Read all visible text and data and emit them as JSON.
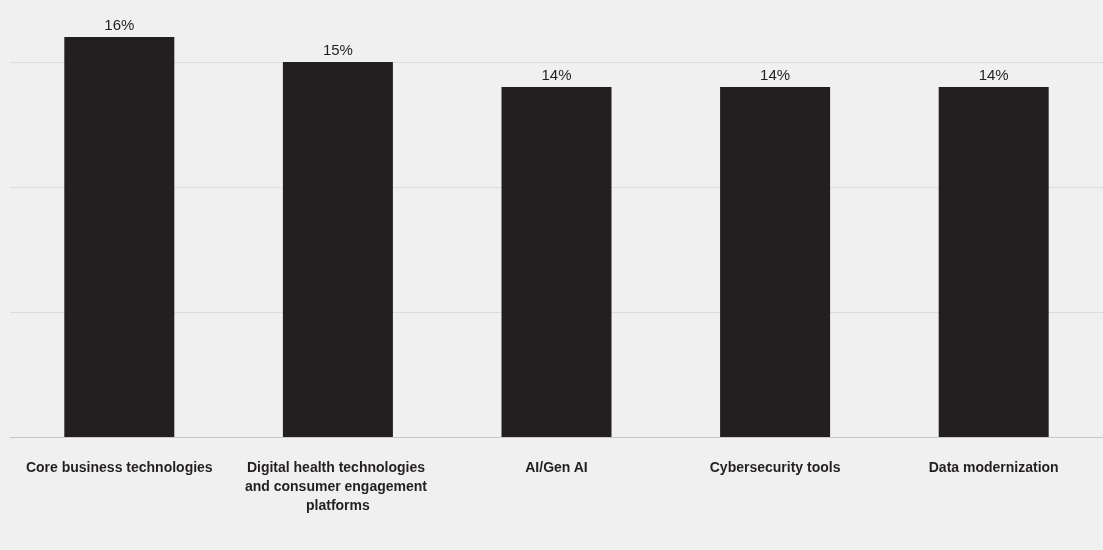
{
  "chart_data": {
    "type": "bar",
    "categories": [
      "Core business technologies",
      "Digital health technologies and consumer engagement platforms",
      "AI/Gen AI",
      "Cybersecurity tools",
      "Data modernization"
    ],
    "values": [
      16,
      15,
      14,
      14,
      14
    ],
    "color": "#231f20",
    "value_labels": [
      "16%",
      "15%",
      "14%",
      "14%",
      "14%"
    ],
    "yticks": [
      {
        "value": 0,
        "label": null
      },
      {
        "value": 5,
        "label": null
      },
      {
        "value": 10,
        "label": null
      },
      {
        "value": 15,
        "label": null
      }
    ],
    "grid": "y",
    "tick_labels": "x"
  }
}
